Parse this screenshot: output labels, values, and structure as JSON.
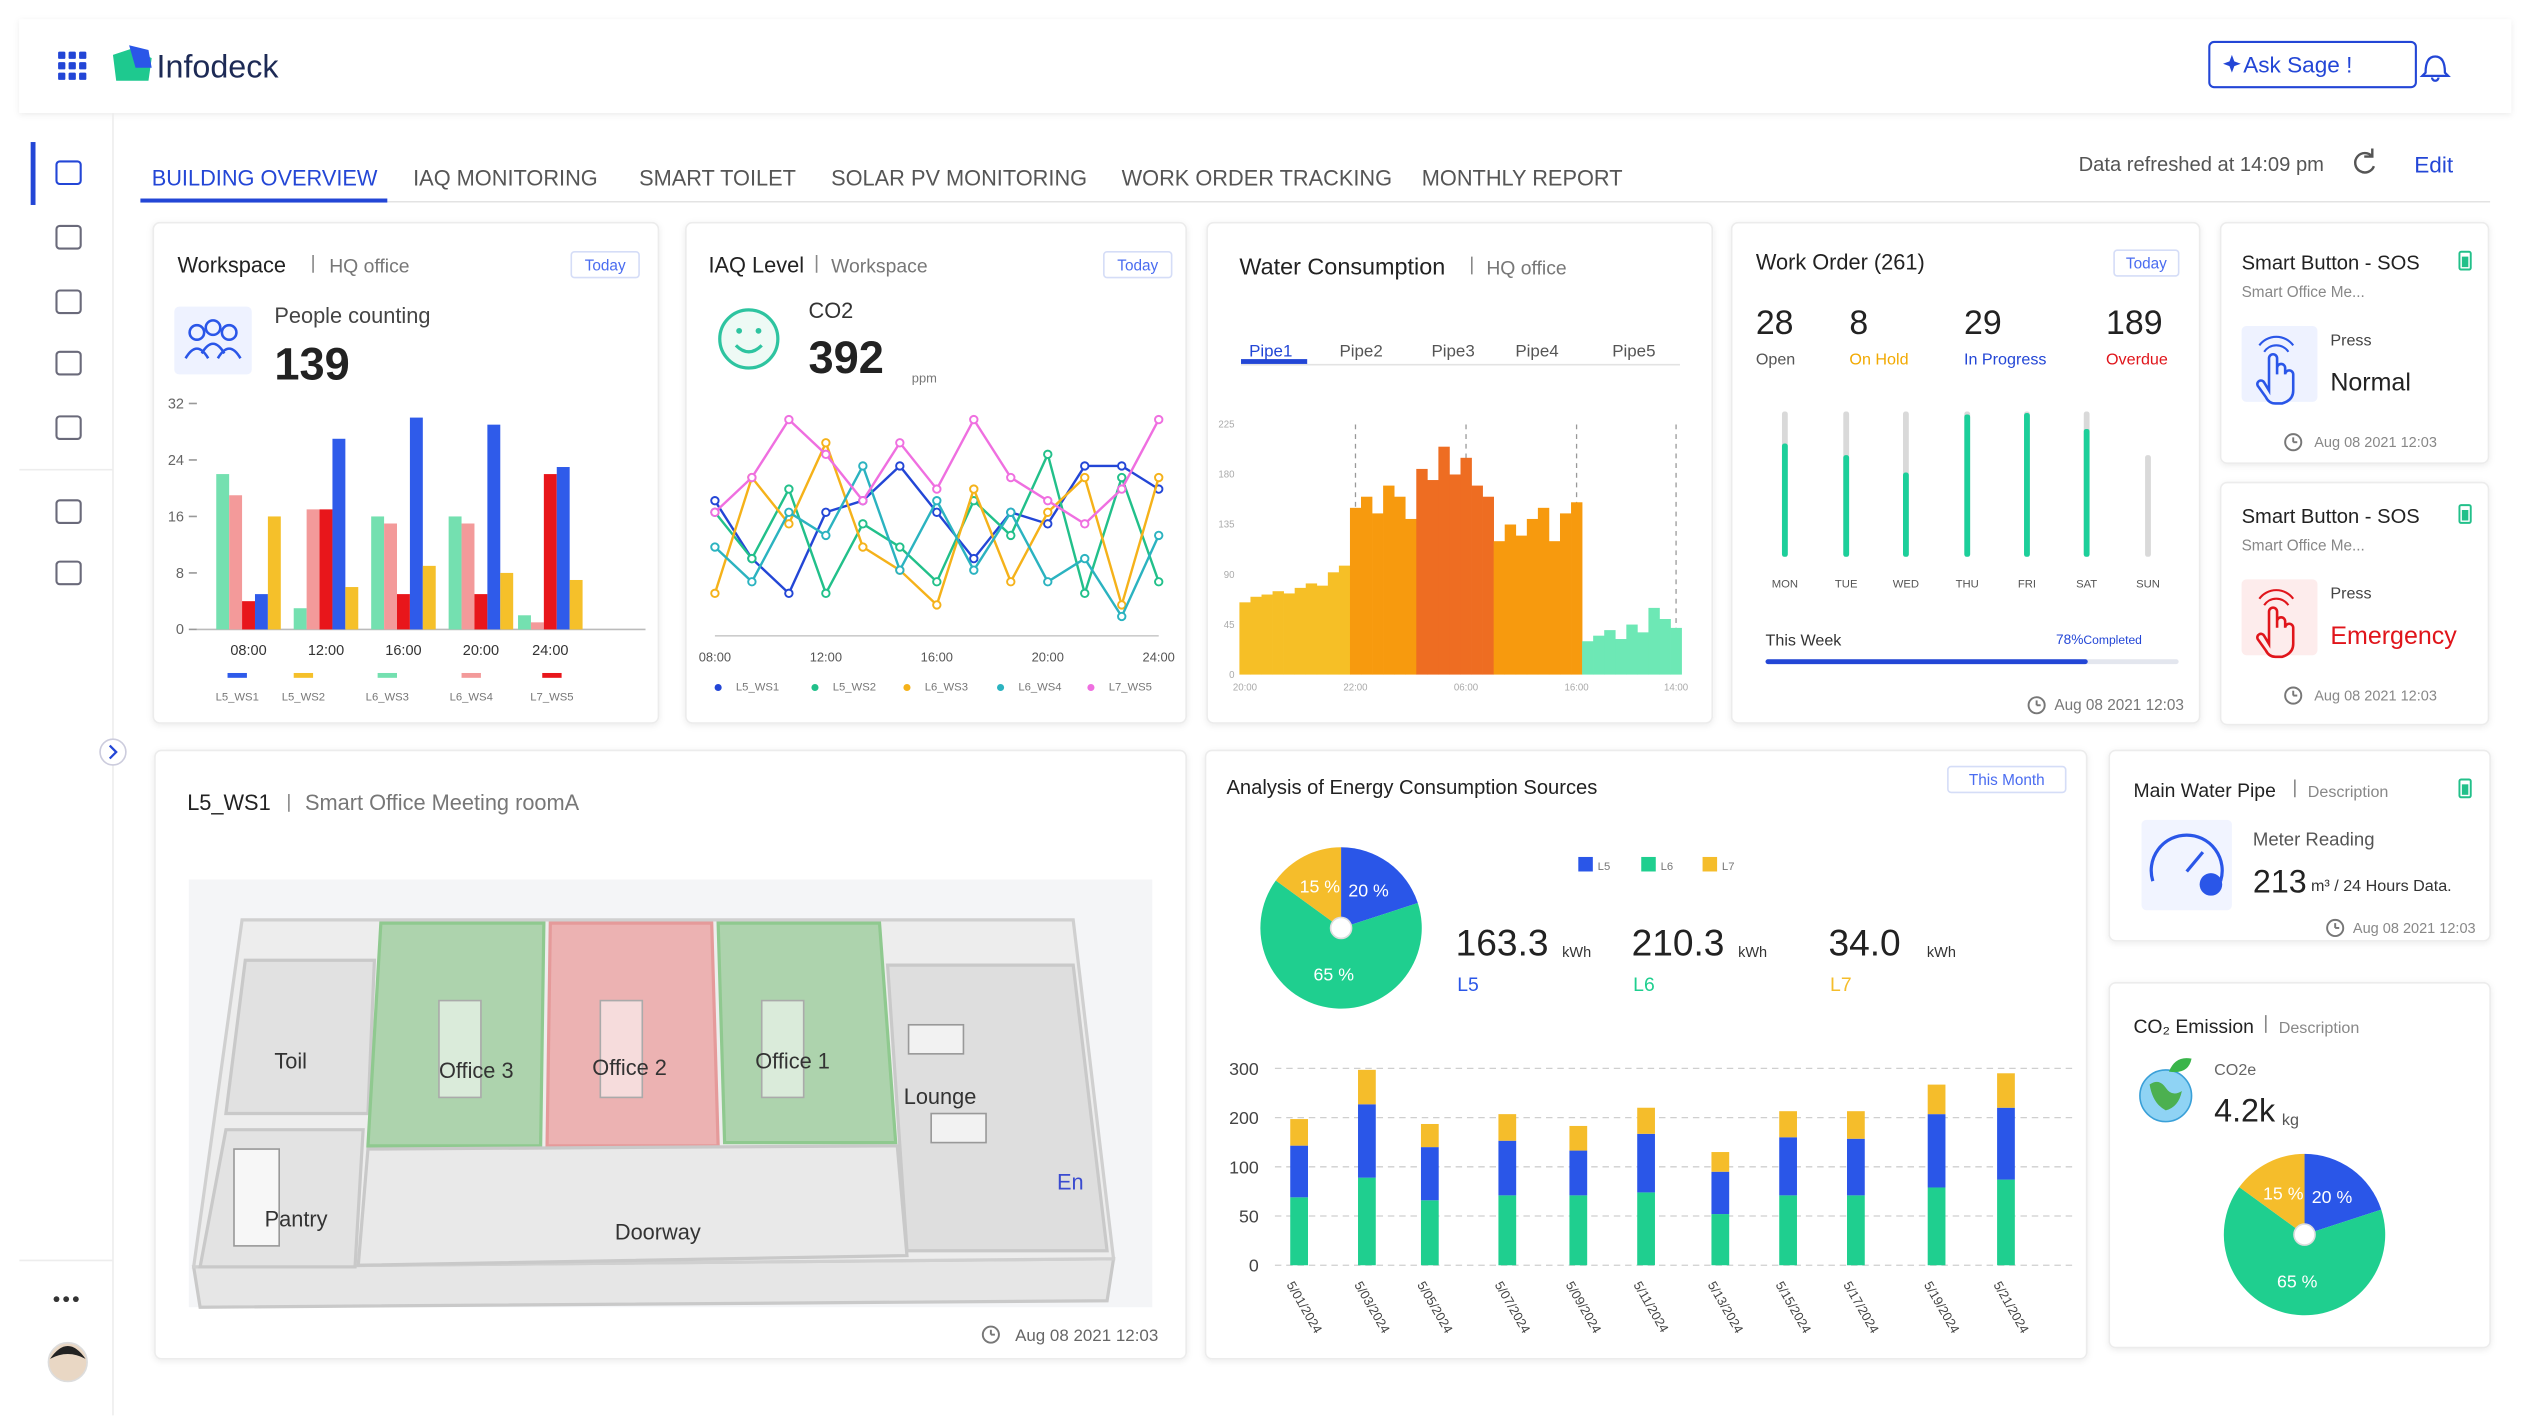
{
  "header": {
    "brand": "Infodeck",
    "ask_button": "Ask Sage !"
  },
  "tabs": {
    "items": [
      "BUILDING OVERVIEW",
      "IAQ MONITORING",
      "SMART TOILET",
      "SOLAR PV MONITORING",
      "WORK ORDER TRACKING",
      "MONTHLY REPORT"
    ],
    "active": 0
  },
  "refresh": {
    "text": "Data refreshed at 14:09 pm",
    "edit": "Edit"
  },
  "workspace": {
    "title": "Workspace",
    "subtitle": "HQ office",
    "badge": "Today",
    "metric_label": "People counting",
    "metric": 139,
    "chart": {
      "type": "bar",
      "categories": [
        "08:00",
        "12:00",
        "16:00",
        "20:00",
        "24:00"
      ],
      "series": [
        {
          "name": "L5_WS1",
          "color": "#2f5bea",
          "values": [
            5,
            27,
            30,
            29,
            23
          ]
        },
        {
          "name": "L5_WS2",
          "color": "#f5c02a",
          "values": [
            16,
            6,
            9,
            8,
            7
          ]
        },
        {
          "name": "L6_WS3",
          "color": "#74e0b0",
          "values": [
            22,
            3,
            16,
            16,
            2
          ]
        },
        {
          "name": "L6_WS4",
          "color": "#f39a9a",
          "values": [
            19,
            17,
            15,
            15,
            1
          ]
        },
        {
          "name": "L7_WS5",
          "color": "#e8161b",
          "values": [
            4,
            17,
            5,
            5,
            22
          ]
        }
      ],
      "ylim": [
        0,
        32
      ],
      "yticks": [
        0,
        8,
        16,
        24,
        32
      ]
    }
  },
  "iaq": {
    "title": "IAQ Level",
    "subtitle": "Workspace",
    "badge": "Today",
    "metric_label": "CO2",
    "metric": 392,
    "unit": "ppm",
    "chart": {
      "type": "line",
      "categories": [
        "08:00",
        null,
        null,
        "12:00",
        null,
        null,
        "16:00",
        null,
        null,
        "20:00",
        null,
        null,
        "24:00"
      ],
      "series": [
        {
          "name": "L5_WS1",
          "color": "#2346d6",
          "values": [
            60,
            35,
            20,
            55,
            60,
            75,
            55,
            35,
            55,
            50,
            75,
            75,
            65
          ]
        },
        {
          "name": "L5_WS2",
          "color": "#22c08a",
          "values": [
            55,
            35,
            65,
            20,
            50,
            40,
            25,
            60,
            45,
            80,
            20,
            70,
            25
          ]
        },
        {
          "name": "L6_WS3",
          "color": "#f5b21a",
          "values": [
            20,
            70,
            50,
            85,
            40,
            30,
            15,
            65,
            25,
            55,
            70,
            15,
            70
          ]
        },
        {
          "name": "L6_WS4",
          "color": "#2bb3c0",
          "values": [
            40,
            25,
            55,
            45,
            75,
            30,
            60,
            30,
            55,
            25,
            35,
            10,
            45
          ]
        },
        {
          "name": "L7_WS5",
          "color": "#ef6fe0",
          "values": [
            55,
            70,
            95,
            80,
            60,
            85,
            65,
            95,
            70,
            60,
            50,
            65,
            95
          ]
        }
      ]
    }
  },
  "water": {
    "title": "Water Consumption",
    "subtitle": "HQ office",
    "pipes": [
      "Pipe1",
      "Pipe2",
      "Pipe3",
      "Pipe4",
      "Pipe5"
    ],
    "active_pipe": 0,
    "chart": {
      "type": "bar",
      "categories": [
        "20:00",
        null,
        null,
        null,
        null,
        null,
        null,
        null,
        null,
        null,
        "22:00",
        null,
        null,
        null,
        null,
        null,
        null,
        null,
        null,
        null,
        "06:00",
        null,
        null,
        null,
        null,
        null,
        null,
        null,
        null,
        null,
        "16:00",
        null,
        null,
        null,
        null,
        null,
        null,
        null,
        null,
        "14:00"
      ],
      "values": [
        65,
        70,
        72,
        75,
        73,
        78,
        82,
        80,
        92,
        98,
        150,
        160,
        145,
        170,
        160,
        140,
        185,
        175,
        205,
        180,
        195,
        170,
        160,
        120,
        135,
        125,
        140,
        150,
        120,
        145,
        155,
        30,
        35,
        40,
        32,
        45,
        38,
        60,
        50,
        42
      ],
      "colors": [
        "#f6bf26",
        "#f6bf26",
        "#f6bf26",
        "#f6bf26",
        "#f6bf26",
        "#f6bf26",
        "#f6bf26",
        "#f6bf26",
        "#f6bf26",
        "#f6bf26",
        "#f79a0e",
        "#f79a0e",
        "#f79a0e",
        "#f79a0e",
        "#f79a0e",
        "#f79a0e",
        "#ee6d22",
        "#ee6d22",
        "#ee6d22",
        "#ee6d22",
        "#ee6d22",
        "#ee6d22",
        "#ee6d22",
        "#f79a0e",
        "#f79a0e",
        "#f79a0e",
        "#f79a0e",
        "#f79a0e",
        "#f79a0e",
        "#f79a0e",
        "#f79a0e",
        "#6de8b5",
        "#6de8b5",
        "#6de8b5",
        "#6de8b5",
        "#6de8b5",
        "#6de8b5",
        "#6de8b5",
        "#6de8b5",
        "#6de8b5"
      ],
      "ylim": [
        0,
        225
      ],
      "yticks": [
        0,
        45,
        90,
        135,
        180,
        225
      ]
    }
  },
  "work_order": {
    "title": "Work Order (261)",
    "badge": "Today",
    "stats": [
      {
        "value": 28,
        "label": "Open",
        "color": "#555555"
      },
      {
        "value": 8,
        "label": "On Hold",
        "color": "#f2a900"
      },
      {
        "value": 29,
        "label": "In Progress",
        "color": "#2346d6"
      },
      {
        "value": 189,
        "label": "Overdue",
        "color": "#e0151b"
      }
    ],
    "chart": {
      "type": "bar",
      "categories": [
        "MON",
        "TUE",
        "WED",
        "THU",
        "FRI",
        "SAT",
        "SUN"
      ],
      "series": [
        {
          "color": "#d9d9d9",
          "values": [
            100,
            100,
            100,
            100,
            100,
            100,
            70
          ]
        },
        {
          "color": "#1ccf9a",
          "values": [
            78,
            70,
            58,
            98,
            99,
            88,
            0
          ]
        }
      ]
    },
    "progress": {
      "label": "This Week",
      "value": 78,
      "value_label": "78%",
      "suffix": "Completed"
    },
    "timestamp": "Aug 08 2021 12:03"
  },
  "sos": [
    {
      "title": "Smart Button - SOS",
      "subtitle": "Smart Office Me...",
      "press": "Press",
      "status": "Normal",
      "timestamp": "Aug 08 2021 12:03"
    },
    {
      "title": "Smart Button - SOS",
      "subtitle": "Smart Office Me...",
      "press": "Press",
      "status": "Emergency",
      "timestamp": "Aug 08 2021 12:03"
    }
  ],
  "floor": {
    "title": "L5_WS1",
    "subtitle": "Smart Office Meeting roomA",
    "rooms": [
      "Toil",
      "Office 3",
      "Office 2",
      "Office 1",
      "Lounge",
      "Pantry",
      "Doorway",
      "En"
    ],
    "timestamp": "Aug 08 2021 12:03"
  },
  "energy": {
    "title": "Analysis of Energy Consumption Sources",
    "badge": "This Month",
    "pie": {
      "type": "pie",
      "categories": [
        "L5",
        "L6",
        "L7"
      ],
      "values": [
        20,
        65,
        15
      ],
      "value_labels": [
        "20 %",
        "65 %",
        "15 %"
      ],
      "colors": [
        "#2a56e8",
        "#1fcf8f",
        "#f5bd2b"
      ]
    },
    "totals": [
      {
        "value": "163.3",
        "unit": "kWh",
        "name": "L5"
      },
      {
        "value": "210.3",
        "unit": "kWh",
        "name": "L6"
      },
      {
        "value": "34.0",
        "unit": "kWh",
        "name": "L7"
      }
    ],
    "chart": {
      "type": "bar",
      "stacked": true,
      "categories": [
        "5/01/2024",
        "5/03/2024",
        "5/05/2024",
        "5/07/2024",
        "5/09/2024",
        "5/11/2024",
        "5/13/2024",
        "5/15/2024",
        "5/17/2024",
        "5/19/2024",
        "5/21/2024"
      ],
      "series": [
        {
          "color": "#1fcf8f",
          "values": [
            69,
            89,
            66,
            71,
            71,
            74,
            52,
            71,
            71,
            79,
            87
          ]
        },
        {
          "color": "#2a56e8",
          "values": [
            74,
            138,
            74,
            82,
            62,
            93,
            43,
            89,
            86,
            128,
            133
          ]
        },
        {
          "color": "#f5bd2b",
          "values": [
            54,
            70,
            47,
            54,
            50,
            53,
            35,
            53,
            56,
            60,
            70
          ]
        }
      ],
      "ylim": [
        0,
        300
      ],
      "yticks": [
        0,
        50,
        100,
        200,
        300
      ]
    }
  },
  "water_pipe": {
    "title": "Main Water Pipe",
    "subtitle": "Description",
    "label": "Meter Reading",
    "value": 213,
    "unit": "m³ / 24 Hours Data.",
    "timestamp": "Aug 08 2021 12:03"
  },
  "co2": {
    "title": "CO₂ Emission",
    "subtitle": "Description",
    "label": "CO2e",
    "value": "4.2k",
    "unit": "kg",
    "pie": {
      "type": "pie",
      "categories": [
        "L5",
        "L6",
        "L7"
      ],
      "values": [
        20,
        65,
        15
      ],
      "value_labels": [
        "20 %",
        "65 %",
        "15 %"
      ],
      "colors": [
        "#2a56e8",
        "#1fcf8f",
        "#f5bd2b"
      ]
    }
  }
}
